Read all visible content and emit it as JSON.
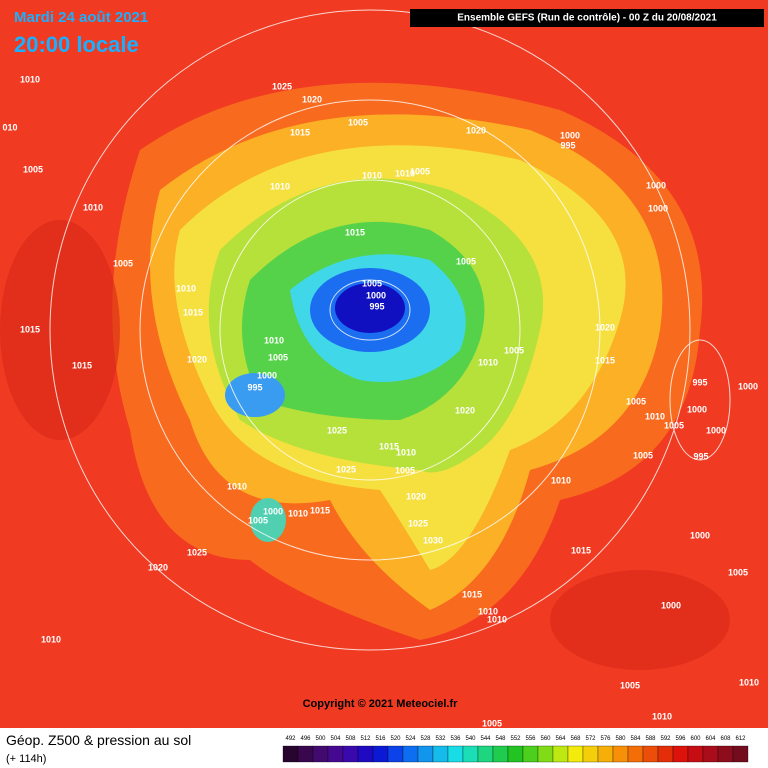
{
  "header": {
    "date": "Mardi 24 août 2021",
    "time": "20:00 locale",
    "run": "Ensemble GEFS  (Run de contrôle)  - 00 Z du 20/08/2021"
  },
  "copyright": "Copyright © 2021 Meteociel.fr",
  "footer": {
    "title": "Géop. Z500 & pression au sol",
    "lead": "(+ 114h)"
  },
  "legend": {
    "values": [
      492,
      496,
      500,
      504,
      508,
      512,
      516,
      520,
      524,
      528,
      532,
      536,
      540,
      544,
      548,
      552,
      556,
      560,
      564,
      568,
      572,
      576,
      580,
      584,
      588,
      592,
      596,
      600,
      604,
      608,
      612
    ]
  },
  "isobar_labels": [
    "1010",
    "010",
    "1005",
    "1010",
    "1025",
    "1020",
    "1015",
    "1005",
    "1020",
    "1000",
    "995",
    "1010",
    "1010",
    "1010",
    "1005",
    "1000",
    "1000",
    "1005",
    "1015",
    "1005",
    "1010",
    "1005",
    "1000",
    "995",
    "1015",
    "1020",
    "1015",
    "1020",
    "1010",
    "1005",
    "1000",
    "995",
    "1015",
    "1010",
    "1005",
    "1015",
    "995",
    "1000",
    "1005",
    "1000",
    "1020",
    "1010",
    "1005",
    "1000",
    "1025",
    "1015",
    "1010",
    "1005",
    "1005",
    "995",
    "1025",
    "1010",
    "1010",
    "1020",
    "1000",
    "1005",
    "1010",
    "1015",
    "1025",
    "1030",
    "1000",
    "1025",
    "1015",
    "1020",
    "1005",
    "1015",
    "1010",
    "1010",
    "1000",
    "1010",
    "1005",
    "1010",
    "1010",
    "1005"
  ]
}
